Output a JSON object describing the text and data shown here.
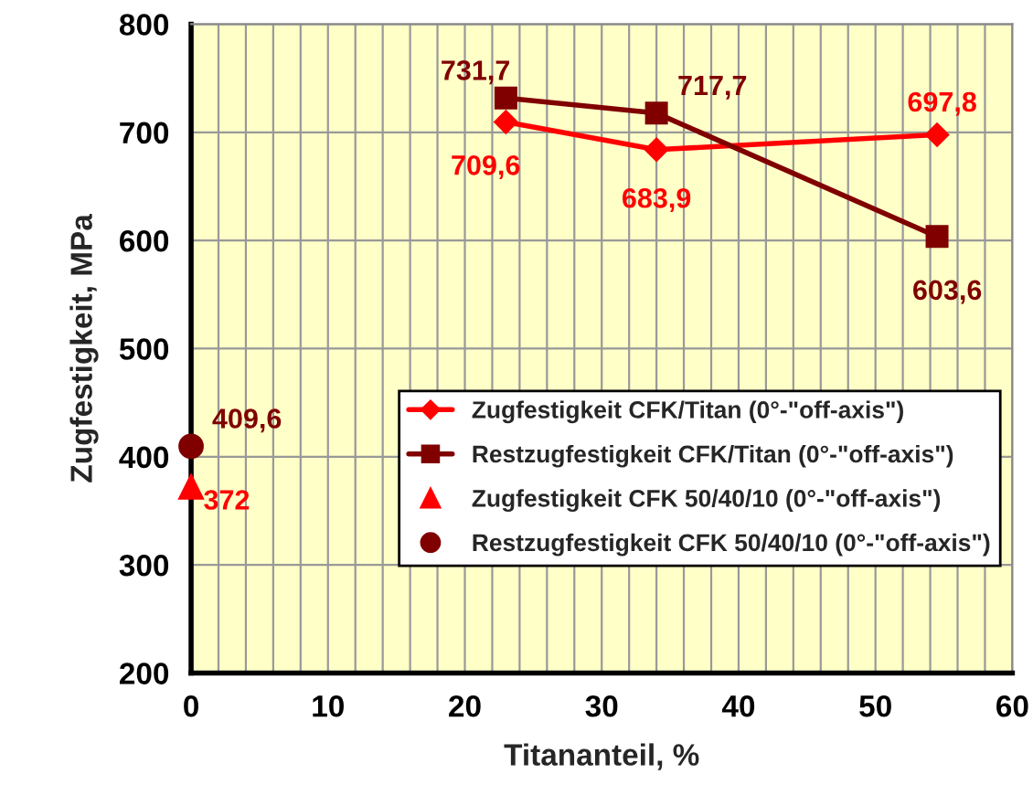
{
  "chart_data": {
    "type": "line",
    "xlabel": "Titananteil, %",
    "ylabel": "Zugfestigkeit, MPa",
    "xlim": [
      0,
      60
    ],
    "xticks": [
      0,
      10,
      20,
      30,
      40,
      50,
      60
    ],
    "ylim": [
      200,
      800
    ],
    "yticks": [
      200,
      300,
      400,
      500,
      600,
      700,
      800
    ],
    "grid": true,
    "legend": "right",
    "series": [
      {
        "name": "Zugfestigkeit CFK/Titan (0°-\"off-axis\")",
        "color": "#ff0000",
        "marker": "diamond",
        "x": [
          23,
          34,
          54.5
        ],
        "values": [
          709.6,
          683.9,
          697.8
        ],
        "value_labels": [
          "709,6",
          "683,9",
          "697,8"
        ]
      },
      {
        "name": "Restzugfestigkeit CFK/Titan (0°-\"off-axis\")",
        "color": "#800000",
        "marker": "square",
        "x": [
          23,
          34,
          54.5
        ],
        "values": [
          731.7,
          717.7,
          603.6
        ],
        "value_labels": [
          "731,7",
          "717,7",
          "603,6"
        ]
      },
      {
        "name": "Zugfestigkeit CFK 50/40/10 (0°-\"off-axis\")",
        "color": "#ff0000",
        "type": "scatter",
        "marker": "triangle",
        "x": [
          0
        ],
        "values": [
          372
        ],
        "value_labels": [
          "372"
        ]
      },
      {
        "name": "Restzugfestigkeit CFK 50/40/10 (0°-\"off-axis\")",
        "color": "#800000",
        "type": "scatter",
        "marker": "circle",
        "x": [
          0
        ],
        "values": [
          409.6
        ],
        "value_labels": [
          "409,6"
        ]
      }
    ]
  }
}
